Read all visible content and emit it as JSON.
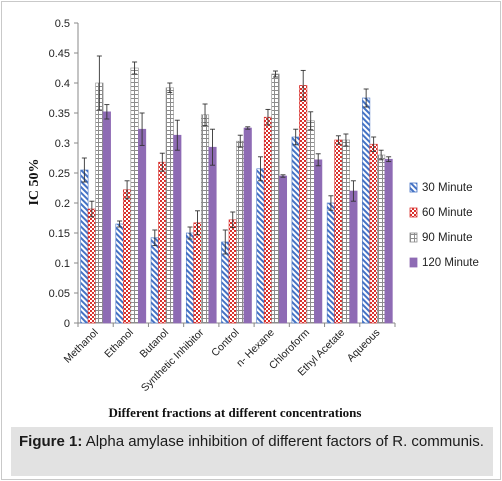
{
  "caption": {
    "label": "Figure 1:",
    "text": "Alpha amylase inhibition of different factors of R. communis."
  },
  "chart_data": {
    "type": "bar",
    "title": "",
    "xlabel": "Different fractions at different concentrations",
    "ylabel": "IC 50%",
    "ylim": [
      0,
      0.5
    ],
    "yticks": [
      "0",
      "0.05",
      "0.1",
      "0.15",
      "0.2",
      "0.25",
      "0.3",
      "0.35",
      "0.4",
      "0.45",
      "0.5"
    ],
    "grid": false,
    "legend_position": "right",
    "categories": [
      "Methanol",
      "Ethanol",
      "Butanol",
      "Synthetic Inhibitor",
      "Control",
      "n- Hexane",
      "Chloroform",
      "Ethyl Acetate",
      "Aqueous"
    ],
    "series": [
      {
        "name": "30 Minute",
        "color": "#4472c4",
        "pattern": "diagonal-hatch",
        "values": [
          0.255,
          0.165,
          0.142,
          0.15,
          0.135,
          0.257,
          0.31,
          0.2,
          0.375
        ],
        "errors": [
          0.02,
          0.005,
          0.013,
          0.01,
          0.02,
          0.02,
          0.013,
          0.012,
          0.015
        ]
      },
      {
        "name": "60 Minute",
        "color": "#d9312d",
        "pattern": "dotted",
        "values": [
          0.19,
          0.222,
          0.268,
          0.167,
          0.172,
          0.343,
          0.396,
          0.305,
          0.298
        ],
        "errors": [
          0.013,
          0.015,
          0.015,
          0.02,
          0.013,
          0.013,
          0.025,
          0.007,
          0.012
        ]
      },
      {
        "name": "90 Minute",
        "color": "#8c8c8c",
        "pattern": "grid",
        "values": [
          0.4,
          0.425,
          0.392,
          0.347,
          0.303,
          0.415,
          0.337,
          0.305,
          0.28
        ],
        "errors": [
          0.045,
          0.01,
          0.008,
          0.018,
          0.01,
          0.005,
          0.015,
          0.01,
          0.008
        ]
      },
      {
        "name": "120 Minute",
        "color": "#8e6bb4",
        "pattern": "solid",
        "values": [
          0.352,
          0.323,
          0.313,
          0.293,
          0.325,
          0.245,
          0.272,
          0.22,
          0.273
        ],
        "errors": [
          0.012,
          0.027,
          0.025,
          0.03,
          0.002,
          0.002,
          0.01,
          0.017,
          0.004
        ]
      }
    ]
  }
}
